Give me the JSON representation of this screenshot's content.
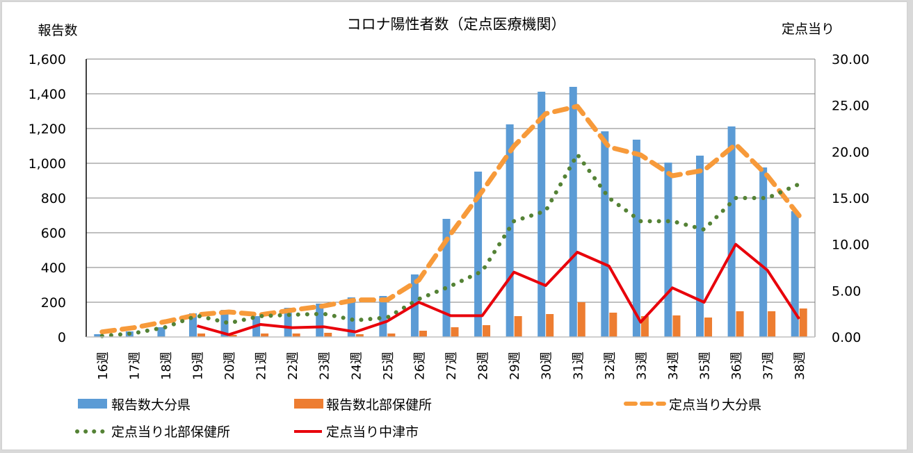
{
  "chart_data": {
    "type": "bar",
    "title": "コロナ陽性者数（定点医療機関）",
    "ylabel": "報告数",
    "y2label": "定点当り",
    "ylim": [
      0,
      1600
    ],
    "y2lim": [
      0,
      30
    ],
    "yticks": [
      "0",
      "200",
      "400",
      "600",
      "800",
      "1,000",
      "1,200",
      "1,400",
      "1,600"
    ],
    "y2ticks": [
      "0.00",
      "5.00",
      "10.00",
      "15.00",
      "20.00",
      "25.00",
      "30.00"
    ],
    "grid": true,
    "legend_position": "bottom",
    "categories": [
      "16週",
      "17週",
      "18週",
      "19週",
      "20週",
      "21週",
      "22週",
      "23週",
      "24週",
      "25週",
      "26週",
      "27週",
      "28週",
      "29週",
      "30週",
      "31週",
      "32週",
      "33週",
      "34週",
      "35週",
      "36週",
      "37週",
      "38週"
    ],
    "series": [
      {
        "name": "報告数大分県",
        "type": "bar",
        "axis": "left",
        "color": "#5b9bd5",
        "values": [
          16,
          32,
          56,
          136,
          156,
          120,
          168,
          192,
          228,
          236,
          360,
          680,
          952,
          1224,
          1412,
          1440,
          1184,
          1136,
          1004,
          1044,
          1212,
          976,
          724
        ]
      },
      {
        "name": "報告数北部保健所",
        "type": "bar",
        "axis": "left",
        "color": "#ed7d31",
        "values": [
          0,
          0,
          0,
          20,
          12,
          20,
          20,
          24,
          16,
          20,
          36,
          56,
          68,
          120,
          132,
          200,
          140,
          120,
          124,
          112,
          148,
          148,
          164
        ]
      },
      {
        "name": "定点当り大分県",
        "type": "line",
        "style": "dashed",
        "axis": "right",
        "color": "#f79a3a",
        "values": [
          0.55,
          1.0,
          1.65,
          2.4,
          2.7,
          2.4,
          2.9,
          3.35,
          4.0,
          4.0,
          6.15,
          11.1,
          15.75,
          20.6,
          24.1,
          24.9,
          20.5,
          19.65,
          17.4,
          18.0,
          20.8,
          17.4,
          13.1
        ]
      },
      {
        "name": "定点当り北部保健所",
        "type": "line",
        "style": "dotted",
        "axis": "right",
        "color": "#548235",
        "values": [
          0.1,
          0.4,
          1.05,
          2.3,
          1.5,
          2.25,
          2.4,
          2.5,
          1.8,
          2.1,
          4.1,
          5.5,
          7.1,
          12.5,
          13.6,
          19.7,
          15.0,
          12.5,
          12.5,
          11.6,
          15.0,
          15.0,
          16.5
        ]
      },
      {
        "name": "定点当り中津市",
        "type": "line",
        "style": "solid",
        "axis": "right",
        "color": "#e8000b",
        "values": [
          null,
          null,
          null,
          1.2,
          0.25,
          1.35,
          1.0,
          1.1,
          0.55,
          1.7,
          3.75,
          2.3,
          2.3,
          7.0,
          5.55,
          9.15,
          7.65,
          1.6,
          5.3,
          3.75,
          10.0,
          7.2,
          1.95
        ]
      }
    ]
  }
}
